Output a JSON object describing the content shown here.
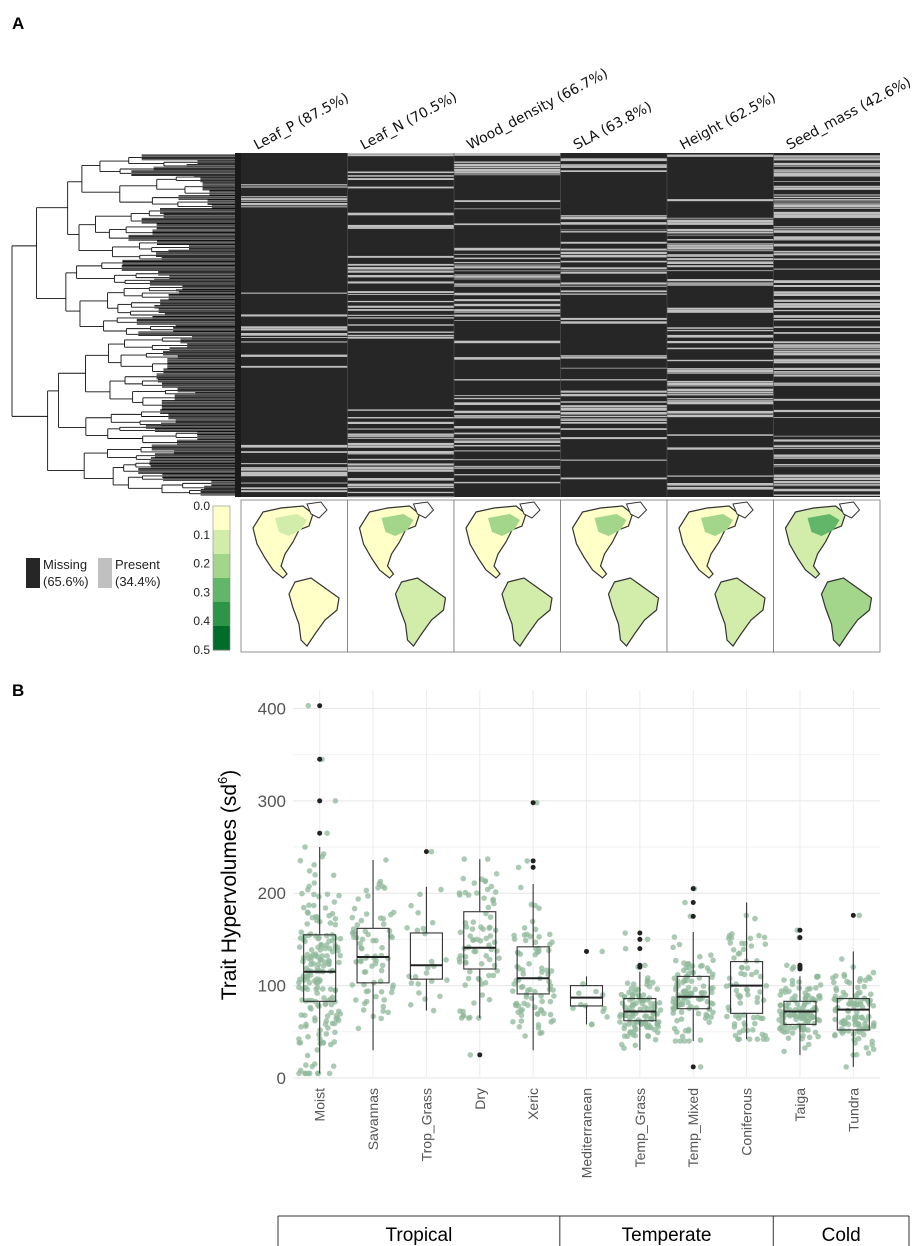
{
  "panel_a": {
    "label": "A",
    "columns": [
      {
        "name": "Leaf_P (87.5%)",
        "missing": 0.875
      },
      {
        "name": "Leaf_N (70.5%)",
        "missing": 0.705
      },
      {
        "name": "Wood_density (66.7%)",
        "missing": 0.667
      },
      {
        "name": "SLA (63.8%)",
        "missing": 0.638
      },
      {
        "name": "Height (62.5%)",
        "missing": 0.625
      },
      {
        "name": "Seed_mass (42.6%)",
        "missing": 0.426
      }
    ],
    "legend": {
      "missing_label": "Missing",
      "missing_pct": "(65.6%)",
      "present_label": "Present",
      "present_pct": "(34.4%)",
      "missing_color": "#262626",
      "present_color": "#c0c0c0"
    },
    "colorbar": {
      "ticks": [
        "0.0",
        "0.1",
        "0.2",
        "0.3",
        "0.4",
        "0.5"
      ],
      "colors": [
        "#ffffc8",
        "#d2ecaa",
        "#a3d68a",
        "#62b669",
        "#2e9448",
        "#006c2c"
      ]
    }
  },
  "chart_data": {
    "type": "box",
    "label": "B",
    "ylabel": "Trait Hypervolumes (sd",
    "ylabel_sup": "6",
    "ylabel_end": ")",
    "ylim": [
      0,
      420
    ],
    "yticks": [
      "0",
      "100",
      "200",
      "300",
      "400"
    ],
    "grid": true,
    "point_color": "#8fb89a",
    "categories": [
      "Moist",
      "Savannas",
      "Trop_Grass",
      "Dry",
      "Xeric",
      "Mediterranean",
      "Temp_Grass",
      "Temp_Mixed",
      "Coniferous",
      "Taiga",
      "Tundra"
    ],
    "boxes": [
      {
        "name": "Moist",
        "q1": 83,
        "median": 115,
        "q3": 155,
        "whisker_low": 5,
        "whisker_high": 250,
        "outliers": [
          265,
          300,
          345,
          403
        ],
        "n": 190
      },
      {
        "name": "Savannas",
        "q1": 103,
        "median": 131,
        "q3": 162,
        "whisker_low": 30,
        "whisker_high": 236,
        "outliers": [],
        "n": 75
      },
      {
        "name": "Trop_Grass",
        "q1": 107,
        "median": 122,
        "q3": 157,
        "whisker_low": 73,
        "whisker_high": 207,
        "outliers": [
          245
        ],
        "n": 25
      },
      {
        "name": "Dry",
        "q1": 118,
        "median": 141,
        "q3": 180,
        "whisker_low": 65,
        "whisker_high": 237,
        "outliers": [
          25
        ],
        "n": 80
      },
      {
        "name": "Xeric",
        "q1": 91,
        "median": 108,
        "q3": 142,
        "whisker_low": 30,
        "whisker_high": 210,
        "outliers": [
          228,
          235,
          298
        ],
        "n": 85
      },
      {
        "name": "Mediterranean",
        "q1": 78,
        "median": 87,
        "q3": 100,
        "whisker_low": 58,
        "whisker_high": 110,
        "outliers": [
          137
        ],
        "n": 12
      },
      {
        "name": "Temp_Grass",
        "q1": 62,
        "median": 72,
        "q3": 86,
        "whisker_low": 30,
        "whisker_high": 115,
        "outliers": [
          120,
          122,
          140,
          150,
          157
        ],
        "n": 110
      },
      {
        "name": "Temp_Mixed",
        "q1": 75,
        "median": 88,
        "q3": 110,
        "whisker_low": 40,
        "whisker_high": 158,
        "outliers": [
          12,
          175,
          190,
          205
        ],
        "n": 110
      },
      {
        "name": "Coniferous",
        "q1": 70,
        "median": 100,
        "q3": 126,
        "whisker_low": 42,
        "whisker_high": 190,
        "outliers": [],
        "n": 75
      },
      {
        "name": "Taiga",
        "q1": 58,
        "median": 72,
        "q3": 83,
        "whisker_low": 25,
        "whisker_high": 110,
        "outliers": [
          118,
          120,
          122,
          152,
          160
        ],
        "n": 120
      },
      {
        "name": "Tundra",
        "q1": 52,
        "median": 74,
        "q3": 86,
        "whisker_low": 12,
        "whisker_high": 137,
        "outliers": [
          176
        ],
        "n": 110
      }
    ],
    "groups": [
      {
        "name": "Tropical",
        "categories": [
          "Moist",
          "Savannas",
          "Trop_Grass",
          "Dry",
          "Xeric"
        ]
      },
      {
        "name": "Temperate",
        "categories": [
          "Mediterranean",
          "Temp_Grass",
          "Temp_Mixed",
          "Coniferous"
        ]
      },
      {
        "name": "Cold",
        "categories": [
          "Taiga",
          "Tundra"
        ]
      }
    ]
  }
}
